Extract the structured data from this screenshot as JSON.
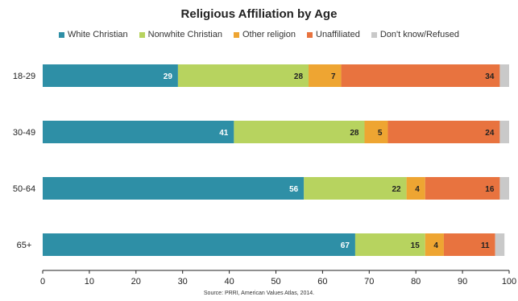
{
  "chart_data": {
    "type": "bar",
    "orientation": "horizontal",
    "stacked": true,
    "title": "Religious Affiliation by Age",
    "source": "Source: PRRI, American Values Atlas, 2014.",
    "categories": [
      "18-29",
      "30-49",
      "50-64",
      "65+"
    ],
    "series": [
      {
        "name": "White Christian",
        "color": "#2e8fa6",
        "values": [
          29,
          41,
          56,
          67
        ],
        "labels": [
          "29",
          "41",
          "56",
          "67"
        ],
        "label_color": "#ffffff"
      },
      {
        "name": "Nonwhite Christian",
        "color": "#b7d35f",
        "values": [
          28,
          28,
          22,
          15
        ],
        "labels": [
          "28",
          "28",
          "22",
          "15"
        ],
        "label_color": "#222222"
      },
      {
        "name": "Other religion",
        "color": "#eea532",
        "values": [
          7,
          5,
          4,
          4
        ],
        "labels": [
          "7",
          "5",
          "4",
          "4"
        ],
        "label_color": "#222222"
      },
      {
        "name": "Unaffiliated",
        "color": "#e8733f",
        "values": [
          34,
          24,
          16,
          11
        ],
        "labels": [
          "34",
          "24",
          "16",
          "11"
        ],
        "label_color": "#222222"
      },
      {
        "name": "Don't know/Refused",
        "color": "#c9c9c9",
        "values": [
          2,
          2,
          2,
          2
        ],
        "labels": [
          "",
          "",
          "",
          ""
        ],
        "label_color": "#222222"
      }
    ],
    "xlim": [
      0,
      100
    ],
    "xticks": [
      "0",
      "10",
      "20",
      "30",
      "40",
      "50",
      "60",
      "70",
      "80",
      "90",
      "100"
    ],
    "grid": false,
    "legend_position": "top"
  }
}
